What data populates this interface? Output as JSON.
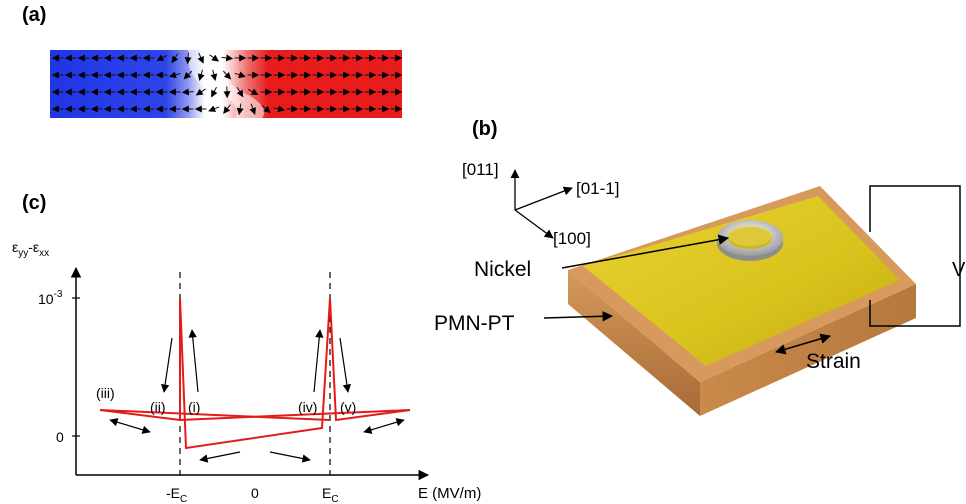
{
  "panels": {
    "a": "(a)",
    "b": "(b)",
    "c": "(c)"
  },
  "panel_a": {
    "colors": {
      "left_domain": "#1f35e6",
      "right_domain": "#e81c1c",
      "wall": "#ffffff",
      "arrow": "#111111"
    }
  },
  "panel_b": {
    "axes": {
      "up": "[011]",
      "right": "[01-1]",
      "down_left": "[100]"
    },
    "labels": {
      "nickel": "Nickel",
      "substrate": "PMN-PT",
      "strain": "Strain",
      "voltage": "V"
    },
    "colors": {
      "electrode": "#d8c41a",
      "substrate": "#c98a4a",
      "ring": "#b9b9b9"
    }
  },
  "panel_c": {
    "y_label_main": "ε",
    "y_label_sub1": "yy",
    "y_label_dash": "-ε",
    "y_label_sub2": "xx",
    "y_ticks": {
      "top": "10",
      "top_exp": "-3",
      "zero": "0"
    },
    "x_ticks": {
      "neg_ec_main": "-E",
      "neg_ec_sub": "C",
      "zero": "0",
      "ec_main": "E",
      "ec_sub": "C"
    },
    "x_label": "E (MV/m)",
    "branch_labels": [
      "(iii)",
      "(ii)",
      "(i)",
      "(iv)",
      "(v)"
    ],
    "colors": {
      "curve": "#e31b1b",
      "axes": "#000000"
    }
  }
}
